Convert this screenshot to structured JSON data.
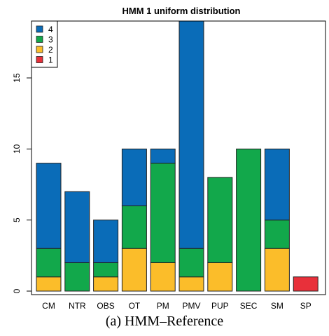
{
  "chart_data": {
    "type": "bar",
    "stacked": true,
    "title": "HMM 1 uniform distribution",
    "xlabel": "",
    "ylabel": "",
    "categories": [
      "CM",
      "NTR",
      "OBS",
      "OT",
      "PM",
      "PMV",
      "PUP",
      "SEC",
      "SM",
      "SP"
    ],
    "series": [
      {
        "name": "1",
        "color": "#e8303a",
        "values": [
          0,
          0,
          0,
          0,
          0,
          0,
          0,
          0,
          0,
          1
        ]
      },
      {
        "name": "2",
        "color": "#fbbd2a",
        "values": [
          1,
          0,
          1,
          3,
          2,
          1,
          2,
          0,
          3,
          0
        ]
      },
      {
        "name": "3",
        "color": "#12a84b",
        "values": [
          2,
          2,
          1,
          3,
          7,
          2,
          6,
          10,
          2,
          0
        ]
      },
      {
        "name": "4",
        "color": "#0a6cb8",
        "values": [
          6,
          5,
          3,
          4,
          1,
          16,
          0,
          0,
          5,
          0
        ]
      }
    ],
    "yticks": [
      0,
      5,
      10,
      15
    ],
    "ylim": [
      0,
      19
    ],
    "legend": {
      "placement": "top-left",
      "order": [
        "4",
        "3",
        "2",
        "1"
      ]
    },
    "grid": false
  },
  "caption": "(a) HMM–Reference"
}
